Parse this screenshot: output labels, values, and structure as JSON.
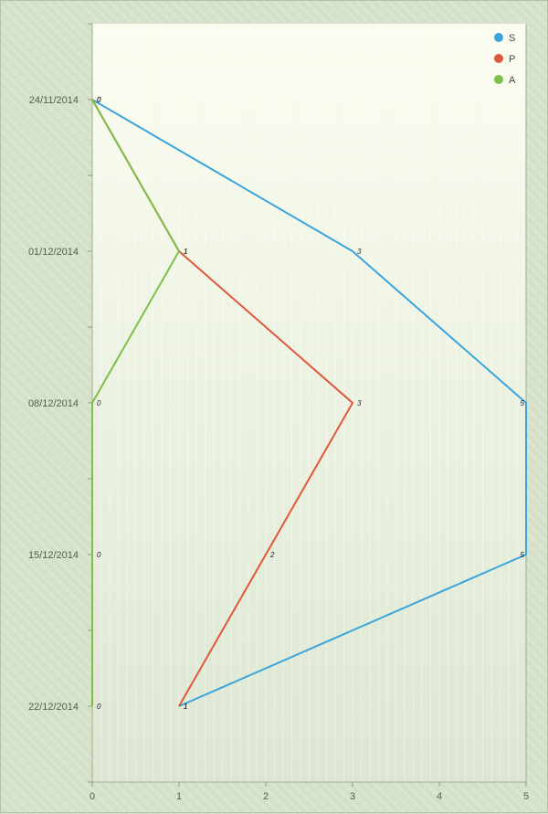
{
  "chart_data": {
    "type": "line",
    "orientation": "horizontal-values-vertical-dates",
    "x_axis": {
      "range": [
        0,
        5
      ],
      "ticks": [
        "0",
        "1",
        "2",
        "3",
        "4",
        "5"
      ]
    },
    "y_axis": {
      "categories": [
        "24/11/2014",
        "01/12/2014",
        "08/12/2014",
        "15/12/2014",
        "22/12/2014"
      ]
    },
    "grid": true,
    "legend_position": "top-right",
    "series": [
      {
        "name": "S",
        "color": "#3aa5dc",
        "values": [
          0,
          3,
          5,
          5,
          1
        ],
        "labels": [
          "0",
          "3",
          "5",
          "5",
          "1"
        ]
      },
      {
        "name": "P",
        "color": "#e0583a",
        "values": [
          0,
          1,
          3,
          2,
          1
        ],
        "labels": [
          "0",
          "1",
          "3",
          "2",
          "1"
        ]
      },
      {
        "name": "A",
        "color": "#7cc04a",
        "values": [
          0,
          1,
          0,
          0,
          0
        ],
        "labels": [
          "0",
          "1",
          "0",
          "0",
          "0"
        ]
      }
    ]
  }
}
